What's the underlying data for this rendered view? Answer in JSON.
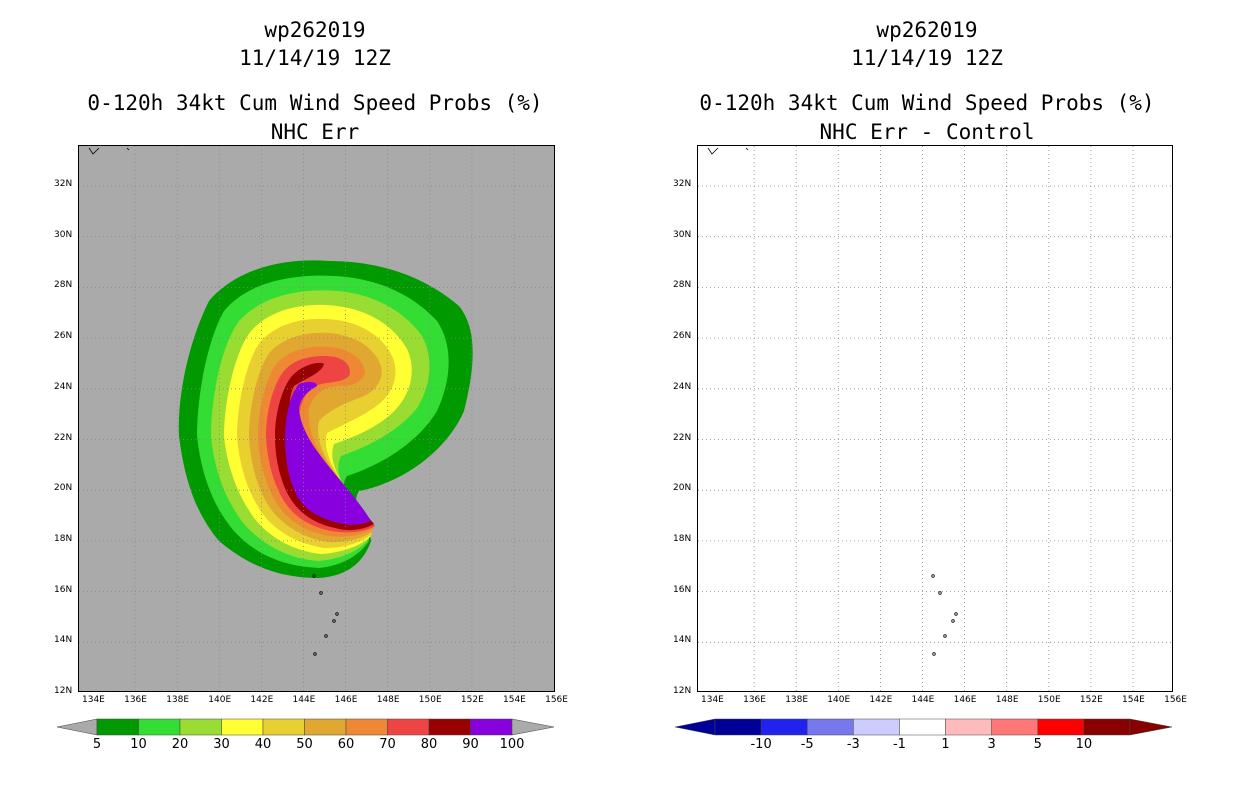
{
  "left_panel": {
    "storm_id": "wp262019",
    "datetime": "11/14/19 12Z",
    "product": "0-120h 34kt Cum Wind Speed Probs (%)",
    "subtitle": "NHC Err",
    "background_color": "#aaaaaa",
    "colorbar": {
      "labels": [
        "5",
        "10",
        "20",
        "30",
        "40",
        "50",
        "60",
        "70",
        "80",
        "90",
        "100"
      ],
      "colors": [
        "#009900",
        "#33dd33",
        "#99dd33",
        "#ffff33",
        "#e8d030",
        "#e0a830",
        "#ee8833",
        "#ee4444",
        "#990000",
        "#8800dd"
      ]
    }
  },
  "right_panel": {
    "storm_id": "wp262019",
    "datetime": "11/14/19 12Z",
    "product": "0-120h 34kt Cum Wind Speed Probs (%)",
    "subtitle": "NHC Err - Control",
    "background_color": "#ffffff",
    "colorbar": {
      "labels": [
        "-10",
        "-5",
        "-3",
        "-1",
        "1",
        "3",
        "5",
        "10"
      ],
      "colors": [
        "#000099",
        "#2222ee",
        "#7777ee",
        "#ccccff",
        "#ffffff",
        "#ffbbbb",
        "#ff7777",
        "#ff0000",
        "#880000"
      ]
    }
  },
  "axes": {
    "lat_labels": [
      "12N",
      "14N",
      "16N",
      "18N",
      "20N",
      "22N",
      "24N",
      "26N",
      "28N",
      "30N",
      "32N"
    ],
    "lon_labels": [
      "134E",
      "136E",
      "138E",
      "140E",
      "142E",
      "144E",
      "146E",
      "148E",
      "150E",
      "152E",
      "154E",
      "156E"
    ]
  }
}
